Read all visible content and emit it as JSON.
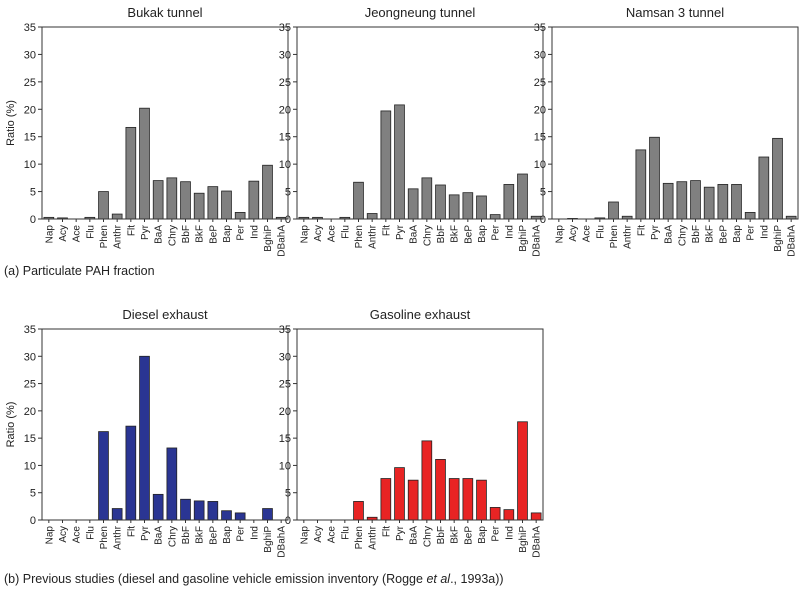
{
  "captions": {
    "a": "(a) Particulate PAH fraction",
    "b_pre": "(b) Previous studies (diesel and gasoline vehicle emission inventory (Rogge ",
    "b_em": "et al",
    "b_post": "., 1993a))"
  },
  "chart_data": [
    {
      "type": "bar",
      "title": "Bukak tunnel",
      "ylabel": "Ratio (%)",
      "ylim": [
        0,
        35
      ],
      "yticks": [
        0,
        5,
        10,
        15,
        20,
        25,
        30,
        35
      ],
      "bar_color": "#808080",
      "categories": [
        "Nap",
        "Acy",
        "Ace",
        "Flu",
        "Phen",
        "Anthr",
        "Flt",
        "Pyr",
        "BaA",
        "Chry",
        "BbF",
        "BkF",
        "BeP",
        "Bap",
        "Per",
        "Ind",
        "BghiP",
        "DBahA"
      ],
      "values": [
        0.3,
        0.2,
        0,
        0.3,
        5.0,
        0.9,
        16.7,
        20.2,
        7.0,
        7.5,
        6.8,
        4.7,
        5.9,
        5.1,
        1.2,
        6.9,
        9.8,
        0.3
      ]
    },
    {
      "type": "bar",
      "title": "Jeongneung tunnel",
      "ylabel": "",
      "ylim": [
        0,
        35
      ],
      "yticks": [
        0,
        5,
        10,
        15,
        20,
        25,
        30,
        35
      ],
      "bar_color": "#808080",
      "categories": [
        "Nap",
        "Acy",
        "Ace",
        "Flu",
        "Phen",
        "Anthr",
        "Flt",
        "Pyr",
        "BaA",
        "Chry",
        "BbF",
        "BkF",
        "BeP",
        "Bap",
        "Per",
        "Ind",
        "BghiP",
        "DBahA"
      ],
      "values": [
        0.3,
        0.3,
        0,
        0.3,
        6.7,
        1.0,
        19.7,
        20.8,
        5.5,
        7.5,
        6.2,
        4.4,
        4.8,
        4.2,
        0.8,
        6.3,
        8.2,
        0.5
      ]
    },
    {
      "type": "bar",
      "title": "Namsan 3 tunnel",
      "ylabel": "",
      "ylim": [
        0,
        35
      ],
      "yticks": [
        0,
        5,
        10,
        15,
        20,
        25,
        30,
        35
      ],
      "bar_color": "#808080",
      "categories": [
        "Nap",
        "Acy",
        "Ace",
        "Flu",
        "Phen",
        "Anthr",
        "Flt",
        "Pyr",
        "BaA",
        "Chry",
        "BbF",
        "BkF",
        "BeP",
        "Bap",
        "Per",
        "Ind",
        "BghiP",
        "DBahA"
      ],
      "values": [
        0,
        0.1,
        0,
        0.2,
        3.1,
        0.5,
        12.6,
        14.9,
        6.5,
        6.8,
        7.0,
        5.8,
        6.3,
        6.3,
        1.2,
        11.3,
        14.7,
        0.5
      ]
    },
    {
      "type": "bar",
      "title": "Diesel exhaust",
      "ylabel": "Ratio (%)",
      "ylim": [
        0,
        35
      ],
      "yticks": [
        0,
        5,
        10,
        15,
        20,
        25,
        30,
        35
      ],
      "bar_color": "#2a3593",
      "categories": [
        "Nap",
        "Acy",
        "Ace",
        "Flu",
        "Phen",
        "Anthr",
        "Flt",
        "Pyr",
        "BaA",
        "Chry",
        "BbF",
        "BkF",
        "BeP",
        "Bap",
        "Per",
        "Ind",
        "BghiP",
        "DBahA"
      ],
      "values": [
        0,
        0,
        0,
        0,
        16.2,
        2.1,
        17.2,
        30.0,
        4.7,
        13.2,
        3.8,
        3.5,
        3.4,
        1.7,
        1.3,
        0,
        2.1,
        0
      ]
    },
    {
      "type": "bar",
      "title": "Gasoline exhaust",
      "ylabel": "",
      "ylim": [
        0,
        35
      ],
      "yticks": [
        0,
        5,
        10,
        15,
        20,
        25,
        30,
        35
      ],
      "bar_color": "#e82424",
      "categories": [
        "Nap",
        "Acy",
        "Ace",
        "Flu",
        "Phen",
        "Anthr",
        "Flt",
        "Pyr",
        "BaA",
        "Chry",
        "BbF",
        "BkF",
        "BeP",
        "Bap",
        "Per",
        "Ind",
        "BghiP",
        "DBahA"
      ],
      "values": [
        0,
        0,
        0,
        0,
        3.4,
        0.5,
        7.6,
        9.6,
        7.3,
        14.5,
        11.1,
        7.6,
        7.6,
        7.3,
        2.3,
        1.9,
        18.0,
        1.3
      ]
    }
  ]
}
